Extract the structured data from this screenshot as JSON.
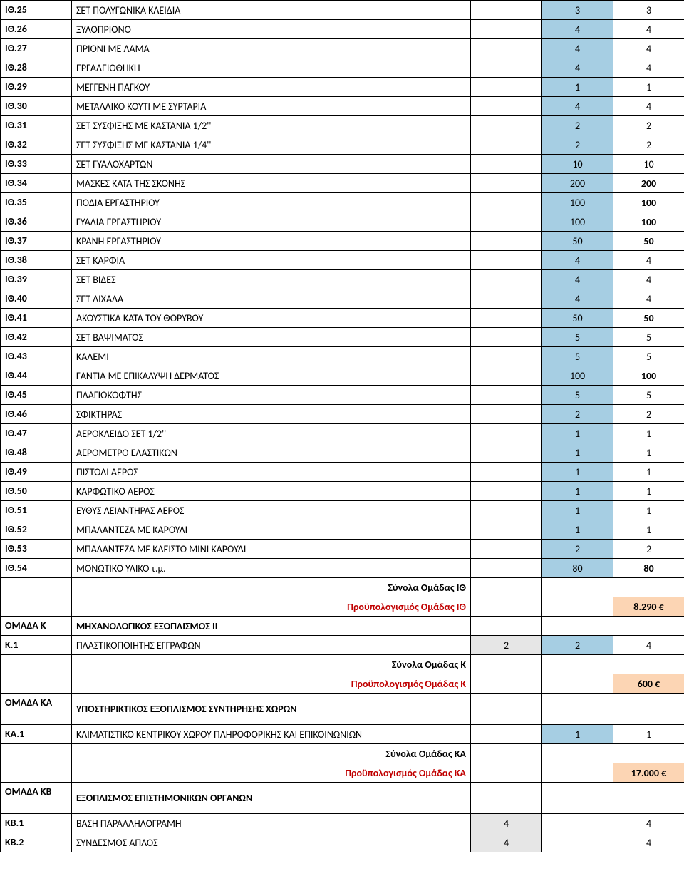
{
  "colors": {
    "blue": "#a6cee3",
    "orange": "#fcd5b4",
    "gray": "#e6e6e6",
    "red": "#c00000",
    "border": "#000000",
    "bg": "#ffffff"
  },
  "rows": [
    {
      "type": "item",
      "code": "ΙΘ.25",
      "desc": "ΣΕΤ ΠΟΛΥΓΩΝΙΚΑ ΚΛΕΙΔΙΑ",
      "a": "",
      "b": "3",
      "c": "3",
      "bBlue": true
    },
    {
      "type": "item",
      "code": "ΙΘ.26",
      "desc": "ΞΥΛΟΠΡΙΟΝΟ",
      "a": "",
      "b": "4",
      "c": "4",
      "bBlue": true
    },
    {
      "type": "item",
      "code": "ΙΘ.27",
      "desc": "ΠΡΙΟΝΙ ΜΕ ΛΑΜΑ",
      "a": "",
      "b": "4",
      "c": "4",
      "bBlue": true
    },
    {
      "type": "item",
      "code": "ΙΘ.28",
      "desc": "ΕΡΓΑΛΕΙΟΘΗΚΗ",
      "a": "",
      "b": "4",
      "c": "4",
      "bBlue": true
    },
    {
      "type": "item",
      "code": "ΙΘ.29",
      "desc": "ΜΕΓΓΕΝΗ ΠΑΓΚΟΥ",
      "a": "",
      "b": "1",
      "c": "1",
      "bBlue": true
    },
    {
      "type": "item",
      "code": "ΙΘ.30",
      "desc": "ΜΕΤΑΛΛΙΚΟ ΚΟΥΤΙ ΜΕ ΣΥΡΤΑΡΙΑ",
      "a": "",
      "b": "4",
      "c": "4",
      "bBlue": true
    },
    {
      "type": "item",
      "code": "ΙΘ.31",
      "desc": "ΣΕΤ ΣΥΣΦΙΞΗΣ ΜΕ ΚΑΣΤΑΝΙΑ 1/2''",
      "a": "",
      "b": "2",
      "c": "2",
      "bBlue": true
    },
    {
      "type": "item",
      "code": "ΙΘ.32",
      "desc": "ΣΕΤ ΣΥΣΦΙΞΗΣ ΜΕ ΚΑΣΤΑΝΙΑ 1/4''",
      "a": "",
      "b": "2",
      "c": "2",
      "bBlue": true
    },
    {
      "type": "item",
      "code": "ΙΘ.33",
      "desc": "ΣΕΤ ΓΥΑΛΟΧΑΡΤΩΝ",
      "a": "",
      "b": "10",
      "c": "10",
      "bBlue": true
    },
    {
      "type": "item",
      "code": "ΙΘ.34",
      "desc": "ΜΑΣΚΕΣ ΚΑΤΑ ΤΗΣ ΣΚΟΝΗΣ",
      "a": "",
      "b": "200",
      "c": "200",
      "bBlue": true,
      "cBold": true
    },
    {
      "type": "item",
      "code": "ΙΘ.35",
      "desc": "ΠΟΔΙΑ ΕΡΓΑΣΤΗΡΙΟΥ",
      "a": "",
      "b": "100",
      "c": "100",
      "bBlue": true,
      "cBold": true
    },
    {
      "type": "item",
      "code": "ΙΘ.36",
      "desc": "ΓΥΑΛΙΑ ΕΡΓΑΣΤΗΡΙΟΥ",
      "a": "",
      "b": "100",
      "c": "100",
      "bBlue": true,
      "cBold": true
    },
    {
      "type": "item",
      "code": "ΙΘ.37",
      "desc": "ΚΡΑΝΗ ΕΡΓΑΣΤΗΡΙΟΥ",
      "a": "",
      "b": "50",
      "c": "50",
      "bBlue": true,
      "cBold": true
    },
    {
      "type": "item",
      "code": "ΙΘ.38",
      "desc": "ΣΕΤ ΚΑΡΦΙΑ",
      "a": "",
      "b": "4",
      "c": "4",
      "bBlue": true
    },
    {
      "type": "item",
      "code": "ΙΘ.39",
      "desc": "ΣΕΤ ΒΙΔΕΣ",
      "a": "",
      "b": "4",
      "c": "4",
      "bBlue": true
    },
    {
      "type": "item",
      "code": "ΙΘ.40",
      "desc": "ΣΕΤ ΔΙΧΑΛΑ",
      "a": "",
      "b": "4",
      "c": "4",
      "bBlue": true
    },
    {
      "type": "item",
      "code": "ΙΘ.41",
      "desc": "ΑΚΟΥΣΤΙΚΑ ΚΑΤΑ ΤΟΥ ΘΟΡΥΒΟΥ",
      "a": "",
      "b": "50",
      "c": "50",
      "bBlue": true,
      "cBold": true
    },
    {
      "type": "item",
      "code": "ΙΘ.42",
      "desc": "ΣΕΤ ΒΑΨΙΜΑΤΟΣ",
      "a": "",
      "b": "5",
      "c": "5",
      "bBlue": true
    },
    {
      "type": "item",
      "code": "ΙΘ.43",
      "desc": "ΚΑΛΕΜΙ",
      "a": "",
      "b": "5",
      "c": "5",
      "bBlue": true
    },
    {
      "type": "item",
      "code": "ΙΘ.44",
      "desc": "ΓΑΝΤΙΑ ΜΕ ΕΠΙΚΑΛΥΨΗ ΔΕΡΜΑΤΟΣ",
      "a": "",
      "b": "100",
      "c": "100",
      "bBlue": true,
      "cBold": true
    },
    {
      "type": "item",
      "code": "ΙΘ.45",
      "desc": "ΠΛΑΓΙΟΚΟΦΤΗΣ",
      "a": "",
      "b": "5",
      "c": "5",
      "bBlue": true
    },
    {
      "type": "item",
      "code": "ΙΘ.46",
      "desc": "ΣΦΙΚΤΗΡΑΣ",
      "a": "",
      "b": "2",
      "c": "2",
      "bBlue": true
    },
    {
      "type": "item",
      "code": "ΙΘ.47",
      "desc": "ΑΕΡΟΚΛΕΙΔΟ ΣΕΤ 1/2''",
      "a": "",
      "b": "1",
      "c": "1",
      "bBlue": true
    },
    {
      "type": "item",
      "code": "ΙΘ.48",
      "desc": "ΑΕΡΟΜΕΤΡΟ ΕΛΑΣΤΙΚΩΝ",
      "a": "",
      "b": "1",
      "c": "1",
      "bBlue": true
    },
    {
      "type": "item",
      "code": "ΙΘ.49",
      "desc": "ΠΙΣΤΟΛΙ ΑΕΡΟΣ",
      "a": "",
      "b": "1",
      "c": "1",
      "bBlue": true
    },
    {
      "type": "item",
      "code": "ΙΘ.50",
      "desc": "ΚΑΡΦΩΤΙΚΟ ΑΕΡΟΣ",
      "a": "",
      "b": "1",
      "c": "1",
      "bBlue": true
    },
    {
      "type": "item",
      "code": "ΙΘ.51",
      "desc": "ΕΥΘΥΣ ΛΕΙΑΝΤΗΡΑΣ ΑΕΡΟΣ",
      "a": "",
      "b": "1",
      "c": "1",
      "bBlue": true
    },
    {
      "type": "item",
      "code": "ΙΘ.52",
      "desc": "ΜΠΑΛΑΝΤΕΖΑ ΜΕ ΚΑΡΟΥΛΙ",
      "a": "",
      "b": "1",
      "c": "1",
      "bBlue": true
    },
    {
      "type": "item",
      "code": "ΙΘ.53",
      "desc": "ΜΠΑΛΑΝΤΕΖΑ ΜΕ ΚΛΕΙΣΤΟ ΜΙΝΙ ΚΑΡΟΥΛΙ",
      "a": "",
      "b": "2",
      "c": "2",
      "bBlue": true
    },
    {
      "type": "item",
      "code": "ΙΘ.54",
      "desc": "ΜΟΝΩΤΙΚΟ ΥΛΙΚΟ τ.μ.",
      "a": "",
      "b": "80",
      "c": "80",
      "bBlue": true,
      "cBold": true
    },
    {
      "type": "subtotal",
      "label": "Σύνολα Ομάδας ΙΘ"
    },
    {
      "type": "budget",
      "label": "Προϋπολογισμός Ομάδας ΙΘ",
      "value": "8.290 €"
    },
    {
      "type": "group",
      "code": "ΟΜΑΔΑ Κ",
      "desc": "ΜΗΧΑΝΟΛΟΓΙΚΟΣ ΕΞΟΠΛΙΣΜΟΣ ΙΙ"
    },
    {
      "type": "item",
      "code": "Κ.1",
      "desc": "ΠΛΑΣΤΙΚΟΠΟΙΗΤΗΣ ΕΓΓΡΑΦΩΝ",
      "a": "2",
      "b": "2",
      "c": "4",
      "aGray": true,
      "bBlue": true
    },
    {
      "type": "subtotal",
      "label": "Σύνολα Ομάδας Κ"
    },
    {
      "type": "budget",
      "label": "Προϋπολογισμός Ομάδας Κ",
      "value": "600 €"
    },
    {
      "type": "group",
      "code": "ΟΜΑΔΑ ΚΑ",
      "desc": "ΥΠΟΣΤΗΡΙΚΤΙΚΟΣ ΕΞΟΠΛΙΣΜΟΣ ΣΥΝΤΗΡΗΣΗΣ ΧΩΡΩΝ",
      "tall": true
    },
    {
      "type": "item",
      "code": "ΚΑ.1",
      "desc": "ΚΛΙΜΑΤΙΣΤΙΚΟ ΚΕΝΤΡΙΚΟΥ ΧΩΡΟΥ ΠΛΗΡΟΦΟΡΙΚΗΣ ΚΑΙ ΕΠΙΚΟΙΝΩΝΙΩΝ",
      "a": "",
      "b": "1",
      "c": "1",
      "bBlue": true
    },
    {
      "type": "subtotal",
      "label": "Σύνολα Ομάδας ΚΑ"
    },
    {
      "type": "budget",
      "label": "Προϋπολογισμός Ομάδας ΚΑ",
      "value": "17.000 €"
    },
    {
      "type": "group",
      "code": "ΟΜΑΔΑ ΚΒ",
      "desc": "ΕΞΟΠΛΙΣΜΟΣ ΕΠΙΣΤΗΜΟΝΙΚΩΝ ΟΡΓΑΝΩΝ",
      "tall": true
    },
    {
      "type": "item",
      "code": "ΚΒ.1",
      "desc": "ΒΑΣΗ ΠΑΡΑΛΛΗΛΟΓΡΑΜΗ",
      "a": "4",
      "b": "",
      "c": "4",
      "aGray": true
    },
    {
      "type": "item",
      "code": "ΚΒ.2",
      "desc": "ΣΥΝΔΕΣΜΟΣ ΑΠΛΟΣ",
      "a": "4",
      "b": "",
      "c": "4",
      "aGray": true
    }
  ]
}
